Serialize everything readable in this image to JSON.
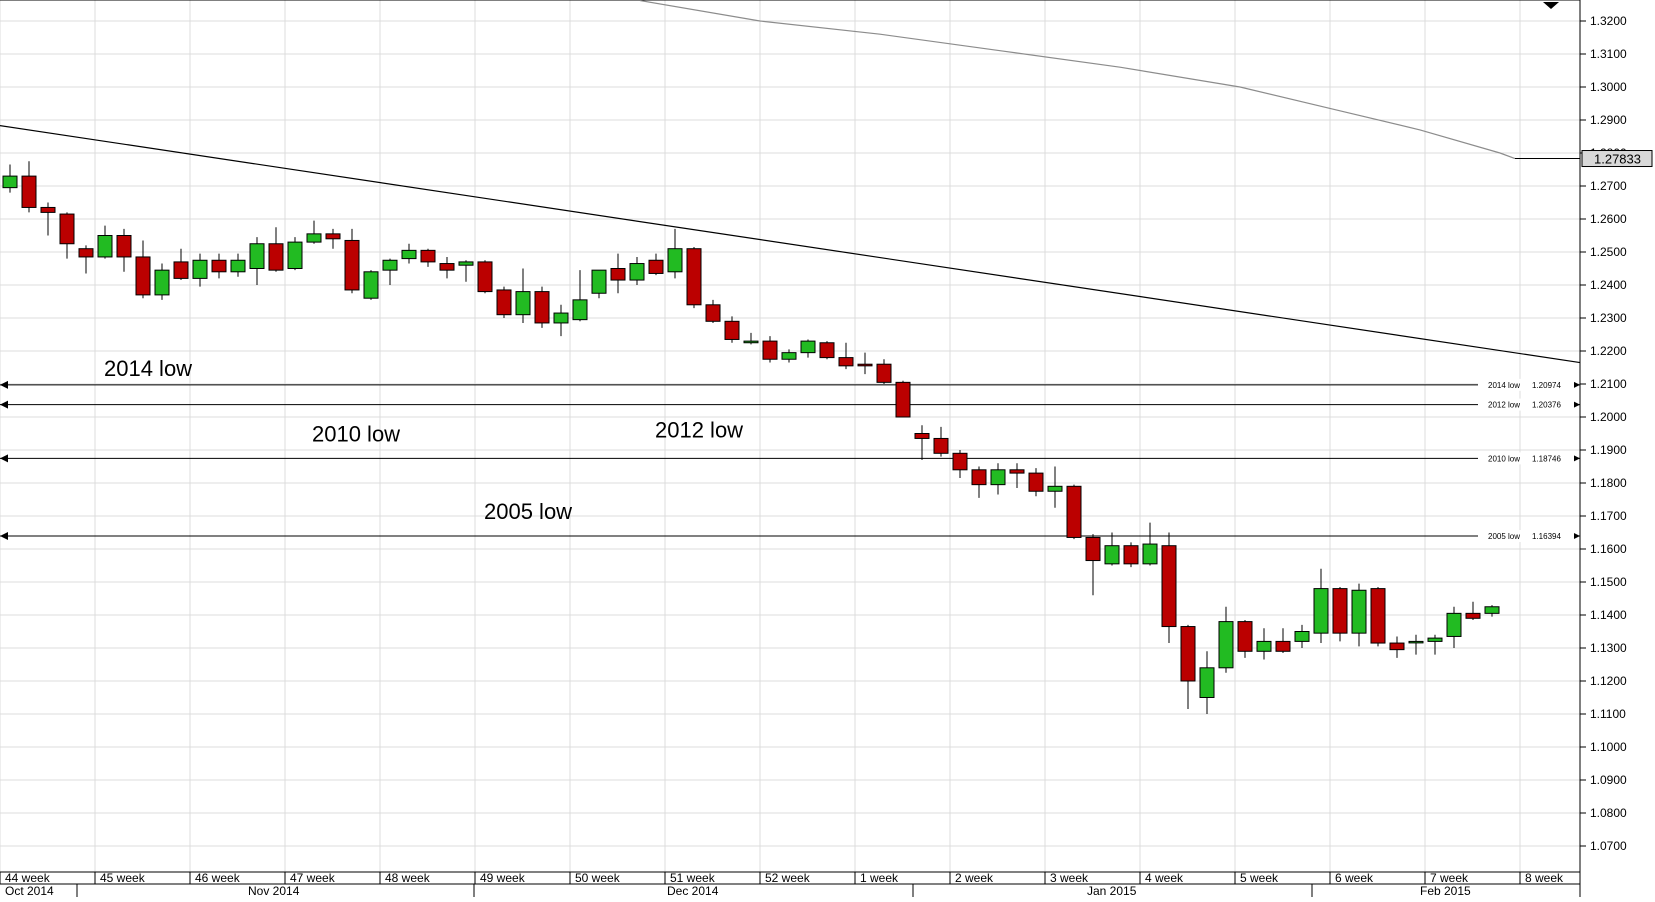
{
  "colors": {
    "up": "#22bb22",
    "down": "#bb0000",
    "grid": "#dcdcdc",
    "axis": "#000000",
    "trendline": "#000000",
    "ma": "#8c8c8c"
  },
  "current_price": "1.27833",
  "chart_data": {
    "type": "candlestick",
    "period": "daily",
    "ylim": [
      1.06,
      1.326
    ],
    "yticks": [
      "1.3200",
      "1.3100",
      "1.3000",
      "1.2900",
      "1.2800",
      "1.2700",
      "1.2600",
      "1.2500",
      "1.2400",
      "1.2300",
      "1.2200",
      "1.2100",
      "1.2000",
      "1.1900",
      "1.1800",
      "1.1700",
      "1.1600",
      "1.1500",
      "1.1400",
      "1.1300",
      "1.1200",
      "1.1100",
      "1.1000",
      "1.0900",
      "1.0800",
      "1.0700"
    ],
    "week_labels": [
      "44 week",
      "45 week",
      "46 week",
      "47 week",
      "48 week",
      "49 week",
      "50 week",
      "51 week",
      "52 week",
      "1 week",
      "2 week",
      "3 week",
      "4 week",
      "5 week",
      "6 week",
      "7 week",
      "8 week"
    ],
    "month_labels": [
      "Oct 2014",
      "Nov 2014",
      "Dec 2014",
      "Jan 2015",
      "Feb 2015"
    ],
    "candles": [
      {
        "o": 1.2695,
        "h": 1.2765,
        "l": 1.268,
        "c": 1.273
      },
      {
        "o": 1.273,
        "h": 1.2775,
        "l": 1.262,
        "c": 1.2635
      },
      {
        "o": 1.2635,
        "h": 1.265,
        "l": 1.255,
        "c": 1.262
      },
      {
        "o": 1.2615,
        "h": 1.262,
        "l": 1.248,
        "c": 1.2525
      },
      {
        "o": 1.251,
        "h": 1.252,
        "l": 1.2435,
        "c": 1.2485
      },
      {
        "o": 1.2485,
        "h": 1.258,
        "l": 1.248,
        "c": 1.255
      },
      {
        "o": 1.255,
        "h": 1.257,
        "l": 1.244,
        "c": 1.2485
      },
      {
        "o": 1.2485,
        "h": 1.2535,
        "l": 1.236,
        "c": 1.237
      },
      {
        "o": 1.237,
        "h": 1.2465,
        "l": 1.2355,
        "c": 1.2445
      },
      {
        "o": 1.247,
        "h": 1.251,
        "l": 1.2415,
        "c": 1.242
      },
      {
        "o": 1.242,
        "h": 1.2495,
        "l": 1.2395,
        "c": 1.2475
      },
      {
        "o": 1.2475,
        "h": 1.2495,
        "l": 1.242,
        "c": 1.244
      },
      {
        "o": 1.244,
        "h": 1.2495,
        "l": 1.2425,
        "c": 1.2475
      },
      {
        "o": 1.245,
        "h": 1.2545,
        "l": 1.24,
        "c": 1.2525
      },
      {
        "o": 1.2525,
        "h": 1.2575,
        "l": 1.244,
        "c": 1.2445
      },
      {
        "o": 1.245,
        "h": 1.2545,
        "l": 1.2445,
        "c": 1.253
      },
      {
        "o": 1.253,
        "h": 1.2595,
        "l": 1.2525,
        "c": 1.2555
      },
      {
        "o": 1.2555,
        "h": 1.257,
        "l": 1.251,
        "c": 1.254
      },
      {
        "o": 1.2535,
        "h": 1.257,
        "l": 1.2375,
        "c": 1.2385
      },
      {
        "o": 1.236,
        "h": 1.2445,
        "l": 1.2355,
        "c": 1.244
      },
      {
        "o": 1.2445,
        "h": 1.248,
        "l": 1.24,
        "c": 1.2475
      },
      {
        "o": 1.248,
        "h": 1.2525,
        "l": 1.2465,
        "c": 1.2505
      },
      {
        "o": 1.2505,
        "h": 1.251,
        "l": 1.2455,
        "c": 1.247
      },
      {
        "o": 1.2465,
        "h": 1.2485,
        "l": 1.242,
        "c": 1.2445
      },
      {
        "o": 1.246,
        "h": 1.2475,
        "l": 1.241,
        "c": 1.247
      },
      {
        "o": 1.247,
        "h": 1.2475,
        "l": 1.2375,
        "c": 1.238
      },
      {
        "o": 1.2385,
        "h": 1.2395,
        "l": 1.23,
        "c": 1.231
      },
      {
        "o": 1.231,
        "h": 1.245,
        "l": 1.2285,
        "c": 1.238
      },
      {
        "o": 1.238,
        "h": 1.2395,
        "l": 1.227,
        "c": 1.2285
      },
      {
        "o": 1.2285,
        "h": 1.234,
        "l": 1.2245,
        "c": 1.2315
      },
      {
        "o": 1.2295,
        "h": 1.2445,
        "l": 1.229,
        "c": 1.2355
      },
      {
        "o": 1.2375,
        "h": 1.244,
        "l": 1.236,
        "c": 1.2445
      },
      {
        "o": 1.245,
        "h": 1.2495,
        "l": 1.2375,
        "c": 1.2415
      },
      {
        "o": 1.2415,
        "h": 1.2485,
        "l": 1.24,
        "c": 1.2465
      },
      {
        "o": 1.2475,
        "h": 1.2495,
        "l": 1.243,
        "c": 1.2435
      },
      {
        "o": 1.244,
        "h": 1.257,
        "l": 1.242,
        "c": 1.251
      },
      {
        "o": 1.251,
        "h": 1.2515,
        "l": 1.233,
        "c": 1.234
      },
      {
        "o": 1.234,
        "h": 1.2355,
        "l": 1.2285,
        "c": 1.229
      },
      {
        "o": 1.229,
        "h": 1.2305,
        "l": 1.2225,
        "c": 1.2235
      },
      {
        "o": 1.2225,
        "h": 1.2255,
        "l": 1.222,
        "c": 1.223
      },
      {
        "o": 1.223,
        "h": 1.2245,
        "l": 1.2165,
        "c": 1.2175
      },
      {
        "o": 1.2175,
        "h": 1.2205,
        "l": 1.2165,
        "c": 1.2195
      },
      {
        "o": 1.2195,
        "h": 1.2235,
        "l": 1.218,
        "c": 1.223
      },
      {
        "o": 1.2225,
        "h": 1.223,
        "l": 1.2175,
        "c": 1.218
      },
      {
        "o": 1.218,
        "h": 1.2225,
        "l": 1.2145,
        "c": 1.2155
      },
      {
        "o": 1.216,
        "h": 1.2195,
        "l": 1.213,
        "c": 1.2155
      },
      {
        "o": 1.216,
        "h": 1.2175,
        "l": 1.21,
        "c": 1.2105
      },
      {
        "o": 1.2105,
        "h": 1.211,
        "l": 1.2,
        "c": 1.2
      },
      {
        "o": 1.195,
        "h": 1.1975,
        "l": 1.187,
        "c": 1.1935
      },
      {
        "o": 1.1935,
        "h": 1.197,
        "l": 1.188,
        "c": 1.189
      },
      {
        "o": 1.189,
        "h": 1.19,
        "l": 1.1815,
        "c": 1.184
      },
      {
        "o": 1.184,
        "h": 1.185,
        "l": 1.1755,
        "c": 1.1795
      },
      {
        "o": 1.1795,
        "h": 1.186,
        "l": 1.1765,
        "c": 1.184
      },
      {
        "o": 1.184,
        "h": 1.186,
        "l": 1.1785,
        "c": 1.183
      },
      {
        "o": 1.183,
        "h": 1.1845,
        "l": 1.176,
        "c": 1.1775
      },
      {
        "o": 1.1775,
        "h": 1.185,
        "l": 1.1725,
        "c": 1.179
      },
      {
        "o": 1.179,
        "h": 1.1795,
        "l": 1.163,
        "c": 1.1635
      },
      {
        "o": 1.1635,
        "h": 1.1645,
        "l": 1.146,
        "c": 1.1565
      },
      {
        "o": 1.1555,
        "h": 1.165,
        "l": 1.155,
        "c": 1.161
      },
      {
        "o": 1.161,
        "h": 1.162,
        "l": 1.1545,
        "c": 1.1555
      },
      {
        "o": 1.1555,
        "h": 1.168,
        "l": 1.155,
        "c": 1.1615
      },
      {
        "o": 1.161,
        "h": 1.165,
        "l": 1.1315,
        "c": 1.1365
      },
      {
        "o": 1.1365,
        "h": 1.137,
        "l": 1.1115,
        "c": 1.12
      },
      {
        "o": 1.115,
        "h": 1.129,
        "l": 1.11,
        "c": 1.124
      },
      {
        "o": 1.124,
        "h": 1.1425,
        "l": 1.1225,
        "c": 1.138
      },
      {
        "o": 1.138,
        "h": 1.1385,
        "l": 1.127,
        "c": 1.129
      },
      {
        "o": 1.129,
        "h": 1.136,
        "l": 1.1265,
        "c": 1.132
      },
      {
        "o": 1.132,
        "h": 1.136,
        "l": 1.1285,
        "c": 1.129
      },
      {
        "o": 1.132,
        "h": 1.137,
        "l": 1.13,
        "c": 1.135
      },
      {
        "o": 1.1345,
        "h": 1.154,
        "l": 1.1315,
        "c": 1.148
      },
      {
        "o": 1.148,
        "h": 1.1485,
        "l": 1.132,
        "c": 1.1345
      },
      {
        "o": 1.1345,
        "h": 1.1495,
        "l": 1.1305,
        "c": 1.1475
      },
      {
        "o": 1.148,
        "h": 1.1485,
        "l": 1.1305,
        "c": 1.1315
      },
      {
        "o": 1.1315,
        "h": 1.1335,
        "l": 1.127,
        "c": 1.1295
      },
      {
        "o": 1.132,
        "h": 1.134,
        "l": 1.128,
        "c": 1.132
      },
      {
        "o": 1.132,
        "h": 1.134,
        "l": 1.128,
        "c": 1.133
      },
      {
        "o": 1.1335,
        "h": 1.1425,
        "l": 1.13,
        "c": 1.1405
      },
      {
        "o": 1.1405,
        "h": 1.144,
        "l": 1.1385,
        "c": 1.139
      },
      {
        "o": 1.1405,
        "h": 1.143,
        "l": 1.1395,
        "c": 1.1425
      }
    ],
    "support_levels": [
      {
        "label": "2014 low",
        "small_label": "2014 low",
        "value": "1.20974",
        "price": 1.20974
      },
      {
        "label": "2012 low",
        "small_label": "2012 low",
        "value": "1.20376",
        "price": 1.20376
      },
      {
        "label": "2010 low",
        "small_label": "2010 low",
        "value": "1.18746",
        "price": 1.18746
      },
      {
        "label": "2005 low",
        "small_label": "2005 low",
        "value": "1.16394",
        "price": 1.16394
      }
    ],
    "trendline": {
      "start": 1.2883,
      "end": 1.2165
    },
    "moving_average": [
      1.3262,
      1.32,
      1.316,
      1.311,
      1.306,
      1.3,
      1.2935,
      1.287,
      1.28,
      1.27833
    ],
    "current_price": 1.27833
  }
}
